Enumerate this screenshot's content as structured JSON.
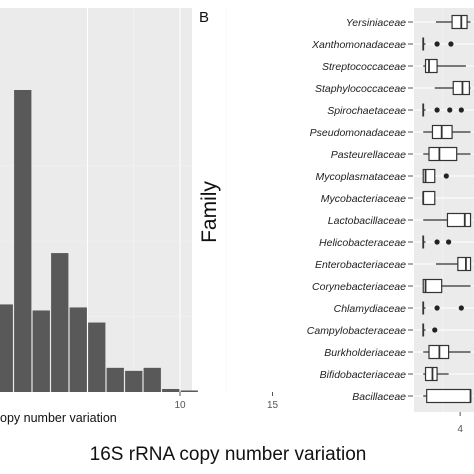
{
  "figure": {
    "xlabel_bottom": "16S rRNA copy number variation"
  },
  "chart_data": [
    {
      "type": "bar",
      "panel_label": "",
      "xlabel": "opy number variation",
      "ylabel": "",
      "xticks": [
        10,
        15
      ],
      "grid": true,
      "bins": [
        {
          "x": 0,
          "value": 29
        },
        {
          "x": 1,
          "value": 100
        },
        {
          "x": 2,
          "value": 27
        },
        {
          "x": 3,
          "value": 46
        },
        {
          "x": 4,
          "value": 28
        },
        {
          "x": 5,
          "value": 23
        },
        {
          "x": 6,
          "value": 8
        },
        {
          "x": 7,
          "value": 7
        },
        {
          "x": 8,
          "value": 8
        },
        {
          "x": 9,
          "value": 1
        },
        {
          "x": 10,
          "value": 0.5
        }
      ],
      "color": "#595959"
    },
    {
      "type": "boxplot",
      "panel_label": "B",
      "ylabel": "Family",
      "xlabel": "",
      "xticks": [
        "4"
      ],
      "grid": true,
      "categories": [
        "Yersiniaceae",
        "Xanthomonadaceae",
        "Streptococcaceae",
        "Staphylococcaceae",
        "Spirochaetaceae",
        "Pseudomonadaceae",
        "Pasteurellaceae",
        "Mycoplasmataceae",
        "Mycobacteriaceae",
        "Lactobacillaceae",
        "Helicobacteraceae",
        "Enterobacteriaceae",
        "Corynebacteriaceae",
        "Chlamydiaceae",
        "Campylobacteraceae",
        "Burkholderiaceae",
        "Bifidobacteriaceae",
        "Bacillaceae"
      ],
      "series": [
        {
          "family": "Yersiniaceae",
          "wlo": 1.9,
          "q1": 3.3,
          "med": 4.1,
          "q3": 4.6,
          "whi": 4.9,
          "outliers": []
        },
        {
          "family": "Xanthomonadaceae",
          "wlo": 0.8,
          "q1": 0.8,
          "med": 0.8,
          "q3": 0.8,
          "whi": 1.0,
          "outliers": [
            2.0,
            3.2
          ]
        },
        {
          "family": "Streptococcaceae",
          "wlo": 0.8,
          "q1": 1.0,
          "med": 1.3,
          "q3": 2.0,
          "whi": 4.5,
          "outliers": []
        },
        {
          "family": "Staphylococcaceae",
          "wlo": 1.8,
          "q1": 3.4,
          "med": 4.2,
          "q3": 4.8,
          "whi": 4.9,
          "outliers": []
        },
        {
          "family": "Spirochaetaceae",
          "wlo": 0.8,
          "q1": 0.8,
          "med": 0.8,
          "q3": 0.8,
          "whi": 1.0,
          "outliers": [
            2.0,
            3.1,
            4.1
          ]
        },
        {
          "family": "Pseudomonadaceae",
          "wlo": 0.8,
          "q1": 1.6,
          "med": 2.4,
          "q3": 3.3,
          "whi": 4.9,
          "outliers": []
        },
        {
          "family": "Pasteurellaceae",
          "wlo": 0.8,
          "q1": 1.3,
          "med": 2.2,
          "q3": 3.7,
          "whi": 4.9,
          "outliers": []
        },
        {
          "family": "Mycoplasmataceae",
          "wlo": 0.8,
          "q1": 0.8,
          "med": 1.0,
          "q3": 1.8,
          "whi": 1.8,
          "outliers": [
            2.8
          ]
        },
        {
          "family": "Mycobacteriaceae",
          "wlo": 0.8,
          "q1": 0.8,
          "med": 0.8,
          "q3": 1.8,
          "whi": 1.8,
          "outliers": []
        },
        {
          "family": "Lactobacillaceae",
          "wlo": 0.8,
          "q1": 2.9,
          "med": 4.4,
          "q3": 4.9,
          "whi": 4.9,
          "outliers": []
        },
        {
          "family": "Helicobacteraceae",
          "wlo": 0.8,
          "q1": 0.8,
          "med": 0.8,
          "q3": 0.8,
          "whi": 1.0,
          "outliers": [
            2.0,
            3.0
          ]
        },
        {
          "family": "Enterobacteriaceae",
          "wlo": 1.9,
          "q1": 3.8,
          "med": 4.5,
          "q3": 4.9,
          "whi": 4.9,
          "outliers": []
        },
        {
          "family": "Corynebacteriaceae",
          "wlo": 0.8,
          "q1": 0.8,
          "med": 1.0,
          "q3": 2.4,
          "whi": 4.9,
          "outliers": []
        },
        {
          "family": "Chlamydiaceae",
          "wlo": 0.8,
          "q1": 0.8,
          "med": 0.8,
          "q3": 0.8,
          "whi": 1.0,
          "outliers": [
            2.0,
            4.1
          ]
        },
        {
          "family": "Campylobacteraceae",
          "wlo": 0.8,
          "q1": 0.8,
          "med": 0.8,
          "q3": 0.8,
          "whi": 1.0,
          "outliers": [
            1.8
          ]
        },
        {
          "family": "Burkholderiaceae",
          "wlo": 0.8,
          "q1": 1.3,
          "med": 2.2,
          "q3": 3.0,
          "whi": 4.9,
          "outliers": []
        },
        {
          "family": "Bifidobacteriaceae",
          "wlo": 0.8,
          "q1": 1.0,
          "med": 1.6,
          "q3": 2.0,
          "whi": 3.0,
          "outliers": []
        },
        {
          "family": "Bacillaceae",
          "wlo": 0.8,
          "q1": 1.1,
          "med": 4.9,
          "q3": 4.9,
          "whi": 4.9,
          "outliers": []
        }
      ]
    }
  ]
}
